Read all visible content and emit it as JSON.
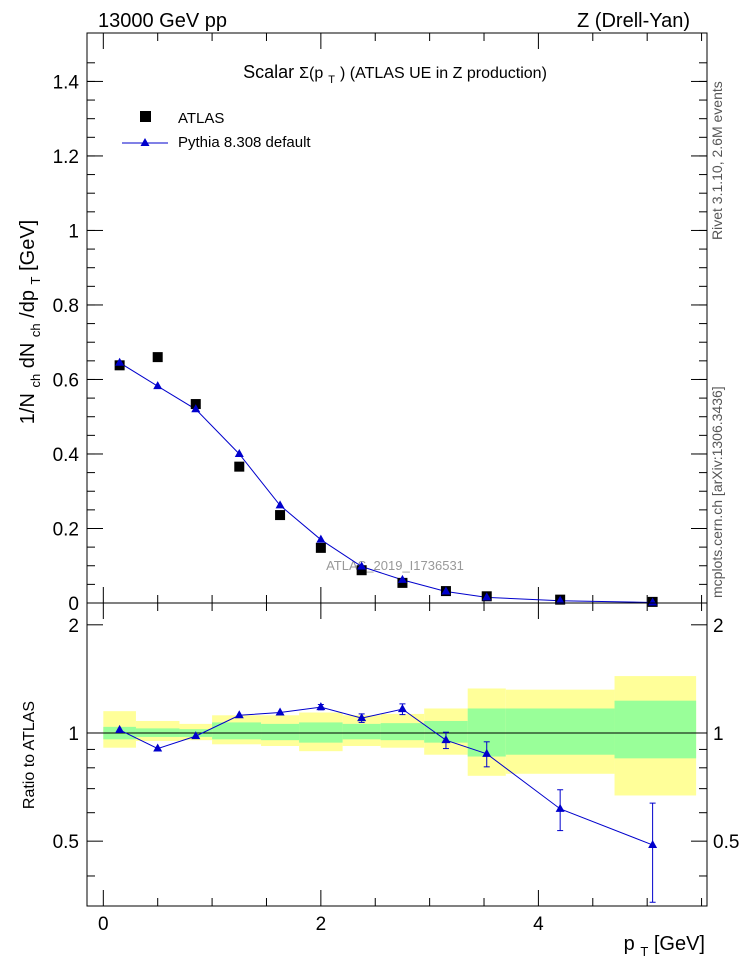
{
  "header": {
    "left": "13000 GeV pp",
    "right": "Z (Drell-Yan)"
  },
  "side": {
    "top": "Rivet 3.1.10,  2.6M events",
    "bottom": "mcplots.cern.ch [arXiv:1306.3436]"
  },
  "colors": {
    "data": "#000000",
    "mc": "#0000cc",
    "band_inner": "#99ff99",
    "band_outer": "#ffff99"
  },
  "chart_data": [
    {
      "type": "scatter",
      "title_main": "Scalar",
      "title_sigma": "Σ(p",
      "title_sub": "T",
      "title_rest": ") (ATLAS UE in Z production)",
      "ylabel": {
        "a": "1/N",
        "a_sub": "ch",
        "b": " dN",
        "b_sub": "ch",
        "c": "/dp",
        "c_sub": "T",
        "d": " [GeV]"
      },
      "watermark": "ATLAS_2019_I1736531",
      "xlim": [
        -0.15,
        5.55
      ],
      "ylim": [
        0,
        1.53
      ],
      "yticks": [
        0,
        0.2,
        0.4,
        0.6,
        0.8,
        1.0,
        1.2,
        1.4
      ],
      "ytick_labels": [
        "0",
        "0.2",
        "0.4",
        "0.6",
        "0.8",
        "1",
        "1.2",
        "1.4"
      ],
      "series": [
        {
          "name": "ATLAS",
          "marker": "square",
          "x": [
            0.15,
            0.5,
            0.85,
            1.25,
            1.625,
            2.0,
            2.375,
            2.75,
            3.15,
            3.525,
            4.2,
            5.05
          ],
          "y": [
            0.638,
            0.66,
            0.534,
            0.366,
            0.236,
            0.148,
            0.088,
            0.054,
            0.032,
            0.018,
            0.009,
            0.003
          ]
        },
        {
          "name": "Pythia 8.308 default",
          "marker": "triangle",
          "x": [
            0.15,
            0.5,
            0.85,
            1.25,
            1.625,
            2.0,
            2.375,
            2.75,
            3.15,
            3.525,
            4.2,
            5.05
          ],
          "y": [
            0.645,
            0.582,
            0.52,
            0.4,
            0.262,
            0.17,
            0.098,
            0.062,
            0.031,
            0.015,
            0.006,
            0.0015
          ]
        }
      ]
    },
    {
      "type": "scatter",
      "ylabel": "Ratio to ATLAS",
      "xlabel": "p",
      "xlabel_sub": "T",
      "xlabel_unit": " [GeV]",
      "xlim": [
        -0.15,
        5.55
      ],
      "ylim": [
        0.33,
        2.3
      ],
      "xticks": [
        0,
        2,
        4
      ],
      "xtick_labels": [
        "0",
        "2",
        "4"
      ],
      "yticks": [
        0.5,
        1,
        2
      ],
      "ytick_labels": [
        "0.5",
        "1",
        "2"
      ],
      "bins": [
        {
          "lo": 0.0,
          "hi": 0.3,
          "inner": [
            0.96,
            1.04
          ],
          "outer": [
            0.91,
            1.15
          ]
        },
        {
          "lo": 0.3,
          "hi": 0.7,
          "inner": [
            0.975,
            1.03
          ],
          "outer": [
            0.95,
            1.08
          ]
        },
        {
          "lo": 0.7,
          "hi": 1.0,
          "inner": [
            0.975,
            1.025
          ],
          "outer": [
            0.955,
            1.06
          ]
        },
        {
          "lo": 1.0,
          "hi": 1.45,
          "inner": [
            0.96,
            1.07
          ],
          "outer": [
            0.93,
            1.12
          ]
        },
        {
          "lo": 1.45,
          "hi": 1.8,
          "inner": [
            0.955,
            1.06
          ],
          "outer": [
            0.92,
            1.12
          ]
        },
        {
          "lo": 1.8,
          "hi": 2.2,
          "inner": [
            0.94,
            1.07
          ],
          "outer": [
            0.89,
            1.14
          ]
        },
        {
          "lo": 2.2,
          "hi": 2.55,
          "inner": [
            0.96,
            1.06
          ],
          "outer": [
            0.92,
            1.12
          ]
        },
        {
          "lo": 2.55,
          "hi": 2.95,
          "inner": [
            0.955,
            1.065
          ],
          "outer": [
            0.91,
            1.13
          ]
        },
        {
          "lo": 2.95,
          "hi": 3.35,
          "inner": [
            0.94,
            1.08
          ],
          "outer": [
            0.87,
            1.17
          ]
        },
        {
          "lo": 3.35,
          "hi": 3.7,
          "inner": [
            0.86,
            1.17
          ],
          "outer": [
            0.76,
            1.33
          ]
        },
        {
          "lo": 3.7,
          "hi": 4.7,
          "inner": [
            0.87,
            1.17
          ],
          "outer": [
            0.77,
            1.32
          ]
        },
        {
          "lo": 4.7,
          "hi": 5.45,
          "inner": [
            0.85,
            1.23
          ],
          "outer": [
            0.67,
            1.44
          ]
        }
      ],
      "series": [
        {
          "name": "Pythia 8.308 default",
          "x": [
            0.15,
            0.5,
            0.85,
            1.25,
            1.625,
            2.0,
            2.375,
            2.75,
            3.15,
            3.525,
            4.2,
            5.05
          ],
          "y": [
            1.02,
            0.905,
            0.98,
            1.12,
            1.14,
            1.18,
            1.1,
            1.165,
            0.955,
            0.875,
            0.615,
            0.488
          ],
          "err": [
            0.005,
            0.005,
            0.005,
            0.008,
            0.01,
            0.02,
            0.03,
            0.04,
            0.05,
            0.07,
            0.08,
            0.15
          ]
        }
      ]
    }
  ]
}
